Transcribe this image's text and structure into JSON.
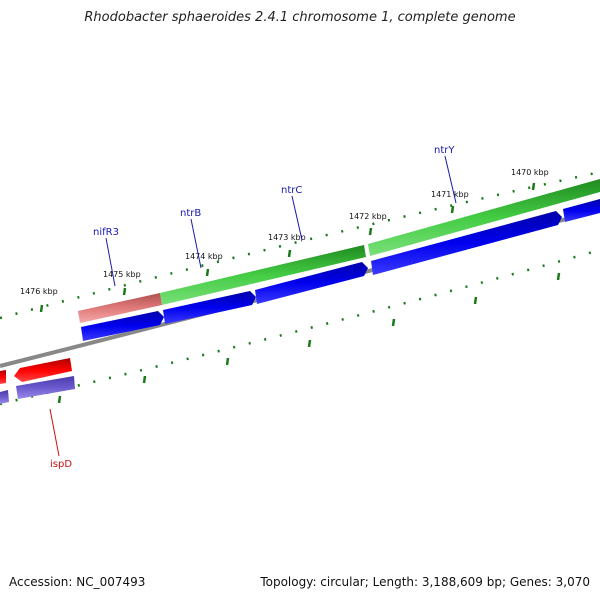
{
  "title": "Rhodobacter sphaeroides 2.4.1 chromosome 1, complete genome",
  "footer": {
    "accession": "Accession: NC_007493",
    "topology": "Topology: circular;",
    "length": "Length: 3,188,609 bp;",
    "genes": "Genes: 3,070"
  },
  "scale_labels": [
    "1476 kbp",
    "1475 kbp",
    "1474 kbp",
    "1473 kbp",
    "1472 kbp",
    "1471 kbp",
    "1470 kbp"
  ],
  "gene_labels": [
    {
      "name": "nifR3",
      "color": "#1a1aa8"
    },
    {
      "name": "ntrB",
      "color": "#1a1aa8"
    },
    {
      "name": "ntrC",
      "color": "#1a1aa8"
    },
    {
      "name": "ntrY",
      "color": "#1a1aa8"
    },
    {
      "name": "ispD",
      "color": "#cc1111"
    }
  ],
  "colors": {
    "green_band": "#33bb33",
    "pink_band": "#e07a7a",
    "blue_cds": "#0000dd",
    "red_cds": "#ee0000",
    "purple_cds": "#6a5acd",
    "backbone": "#888888",
    "tick": "#1a7a1a"
  }
}
